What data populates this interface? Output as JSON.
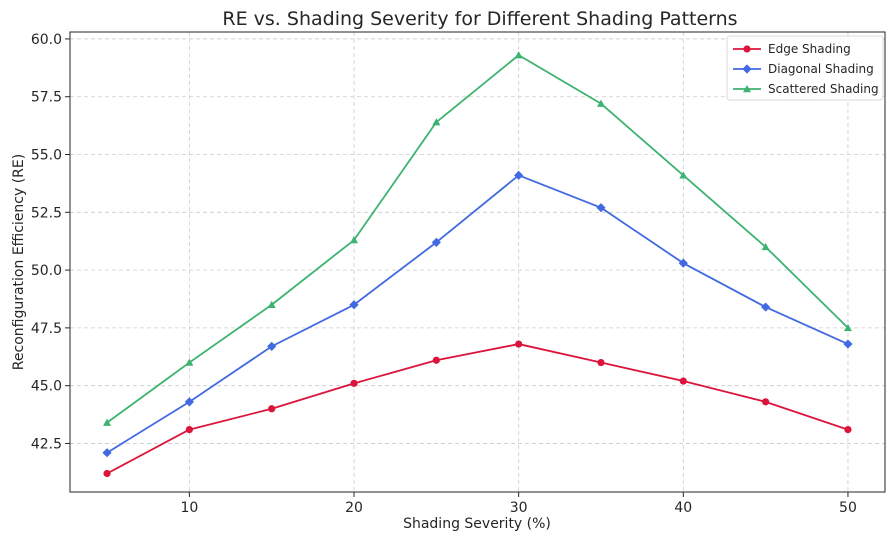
{
  "chart_data": {
    "type": "line",
    "title": "RE vs. Shading Severity for Different Shading Patterns",
    "xlabel": "Shading Severity (%)",
    "ylabel": "Reconfiguration Efficiency (RE)",
    "x": [
      5,
      10,
      15,
      20,
      25,
      30,
      35,
      40,
      45,
      50
    ],
    "xlim": [
      2.75,
      52.25
    ],
    "ylim": [
      40.4,
      60.3
    ],
    "xticks": [
      10,
      20,
      30,
      40,
      50
    ],
    "yticks": [
      42.5,
      45.0,
      47.5,
      50.0,
      52.5,
      55.0,
      57.5,
      60.0
    ],
    "xtick_labels": [
      "10",
      "20",
      "30",
      "40",
      "50"
    ],
    "ytick_labels": [
      "42.5",
      "45.0",
      "47.5",
      "50.0",
      "52.5",
      "55.0",
      "57.5",
      "60.0"
    ],
    "grid": true,
    "legend_position": "top-right",
    "series": [
      {
        "name": "Edge Shading",
        "color": "#dc143c",
        "marker": "circle",
        "values": [
          41.2,
          43.1,
          44.0,
          45.1,
          46.1,
          46.8,
          46.0,
          45.2,
          44.3,
          43.1
        ]
      },
      {
        "name": "Diagonal Shading",
        "color": "#4169e1",
        "marker": "diamond",
        "values": [
          42.1,
          44.3,
          46.7,
          48.5,
          51.2,
          54.1,
          52.7,
          50.3,
          48.4,
          46.8
        ]
      },
      {
        "name": "Scattered Shading",
        "color": "#3cb371",
        "marker": "triangle",
        "values": [
          43.4,
          46.0,
          48.5,
          51.3,
          56.4,
          59.3,
          57.2,
          54.1,
          51.0,
          47.5
        ]
      }
    ]
  }
}
